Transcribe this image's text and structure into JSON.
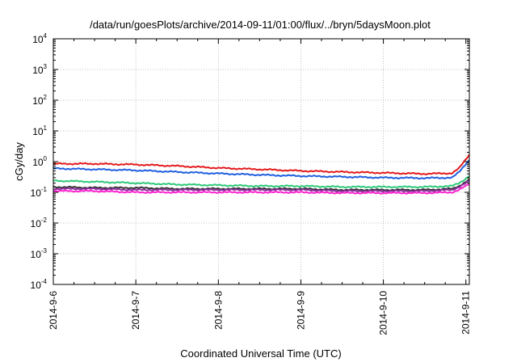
{
  "chart_data": {
    "type": "line",
    "title": "/data/run/goesPlots/archive/2014-09-11/01:00/flux/../bryn/5daysMoon.plot",
    "xlabel": "Coordinated Universal Time (UTC)",
    "ylabel": "cGy/day",
    "x_range": [
      "2014-09-06T00:00",
      "2014-09-11T01:00"
    ],
    "x_ticks": [
      "2014-9-6",
      "2014-9-7",
      "2014-9-8",
      "2014-9-9",
      "2014-9-10",
      "2014-9-11"
    ],
    "y_scale": "log",
    "ylim": [
      0.0001,
      10000
    ],
    "y_ticks": [
      {
        "base": "10",
        "exp": "-4"
      },
      {
        "base": "10",
        "exp": "-3"
      },
      {
        "base": "10",
        "exp": "-2"
      },
      {
        "base": "10",
        "exp": "-1"
      },
      {
        "base": "10",
        "exp": "0"
      },
      {
        "base": "10",
        "exp": "1"
      },
      {
        "base": "10",
        "exp": "2"
      },
      {
        "base": "10",
        "exp": "3"
      },
      {
        "base": "10",
        "exp": "4"
      }
    ],
    "grid": true,
    "legend": "none",
    "x": [
      "2014-09-06T00:00",
      "2014-09-06T12:00",
      "2014-09-07T00:00",
      "2014-09-07T12:00",
      "2014-09-08T00:00",
      "2014-09-08T12:00",
      "2014-09-09T00:00",
      "2014-09-09T12:00",
      "2014-09-10T00:00",
      "2014-09-10T12:00",
      "2014-09-10T20:00",
      "2014-09-10T22:00",
      "2014-09-11T00:00",
      "2014-09-11T01:00"
    ],
    "series": [
      {
        "color": "#e41a1c",
        "values": [
          0.85,
          0.85,
          0.8,
          0.72,
          0.62,
          0.56,
          0.5,
          0.46,
          0.43,
          0.4,
          0.42,
          0.6,
          1.2,
          1.7
        ]
      },
      {
        "color": "#1f5fe0",
        "values": [
          0.6,
          0.56,
          0.52,
          0.46,
          0.41,
          0.37,
          0.34,
          0.32,
          0.3,
          0.29,
          0.3,
          0.45,
          0.85,
          1.15
        ]
      },
      {
        "color": "#2ec87a",
        "values": [
          0.24,
          0.22,
          0.2,
          0.18,
          0.17,
          0.16,
          0.16,
          0.15,
          0.15,
          0.15,
          0.16,
          0.2,
          0.28,
          0.35
        ]
      },
      {
        "color": "#333333",
        "values": [
          0.15,
          0.14,
          0.14,
          0.13,
          0.13,
          0.13,
          0.13,
          0.12,
          0.12,
          0.12,
          0.13,
          0.16,
          0.22,
          0.26
        ]
      },
      {
        "color": "#8e2f9e",
        "values": [
          0.13,
          0.13,
          0.12,
          0.12,
          0.12,
          0.12,
          0.12,
          0.11,
          0.11,
          0.11,
          0.12,
          0.15,
          0.2,
          0.23
        ]
      },
      {
        "color": "#ff22d0",
        "values": [
          0.11,
          0.11,
          0.1,
          0.1,
          0.1,
          0.1,
          0.1,
          0.095,
          0.095,
          0.095,
          0.1,
          0.12,
          0.16,
          0.19
        ]
      }
    ]
  }
}
